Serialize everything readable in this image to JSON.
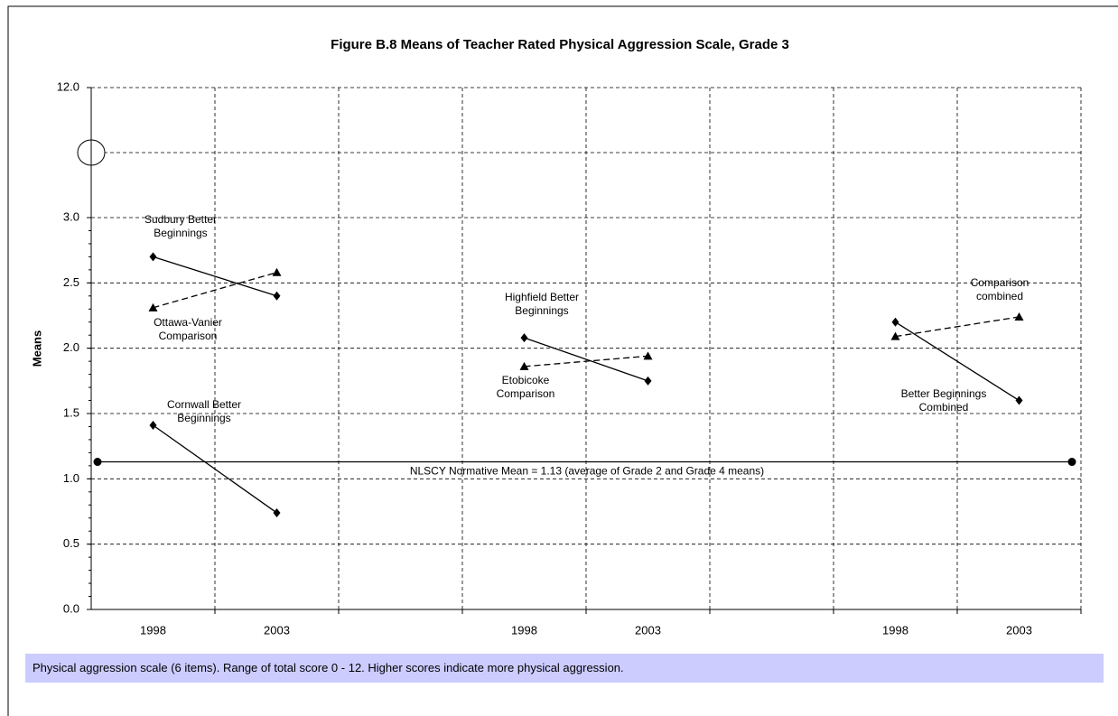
{
  "chart_data": {
    "type": "line",
    "title": "Figure B.8  Means of Teacher Rated Physical Aggression Scale, Grade 3",
    "y_label": "Means",
    "note": "Physical aggression scale (6 items). Range of total score 0 - 12. Higher scores indicate more physical aggression.",
    "categories": [
      "1998",
      "2003",
      null,
      "1998",
      "2003",
      null,
      "1998",
      "2003"
    ],
    "series": [
      {
        "name": "Sudbury Better Beginnings",
        "color": "#000000",
        "marker": "diamond",
        "line_style": "solid",
        "values": [
          2.7,
          2.4,
          null,
          null,
          null,
          null,
          null,
          null
        ]
      },
      {
        "name": "Ottawa-Vanier Comparison",
        "color": "#000000",
        "marker": "triangle",
        "line_style": "dashed",
        "values": [
          2.31,
          2.58,
          null,
          null,
          null,
          null,
          null,
          null
        ]
      },
      {
        "name": "Cornwall Better Beginnings",
        "color": "#000000",
        "marker": "diamond",
        "line_style": "solid",
        "values": [
          1.41,
          0.74,
          null,
          null,
          null,
          null,
          null,
          null
        ]
      },
      {
        "name": "Highfield Better Beginnings",
        "color": "#000000",
        "marker": "diamond",
        "line_style": "solid",
        "values": [
          null,
          null,
          null,
          2.08,
          1.75,
          null,
          null,
          null
        ]
      },
      {
        "name": "Etobicoke Comparison",
        "color": "#000000",
        "marker": "triangle",
        "line_style": "dashed",
        "values": [
          null,
          null,
          null,
          1.86,
          1.94,
          null,
          null,
          null
        ]
      },
      {
        "name": "Better Beginnings Combined",
        "color": "#000000",
        "marker": "diamond",
        "line_style": "solid",
        "values": [
          null,
          null,
          null,
          null,
          null,
          null,
          2.2,
          1.6
        ]
      },
      {
        "name": "Comparison combined",
        "color": "#000000",
        "marker": "triangle",
        "line_style": "dashed",
        "values": [
          null,
          null,
          null,
          null,
          null,
          null,
          2.09,
          2.24
        ]
      }
    ],
    "reference_line": {
      "value": 1.13,
      "label": "NLSCY Normative Mean = 1.13 (average of Grade 2 and Grade 4 means)"
    },
    "ylim": [
      0,
      12
    ],
    "yticks": [
      {
        "value": 0,
        "label": "0.0"
      },
      0.5,
      {
        "value": 1,
        "label": "1.0"
      },
      1.5,
      {
        "value": 2,
        "label": "2.0"
      },
      2.5,
      {
        "value": 3,
        "label": "3.0"
      },
      {
        "value": 12,
        "label": "12.0"
      }
    ],
    "axis_break": true,
    "grid": true
  }
}
